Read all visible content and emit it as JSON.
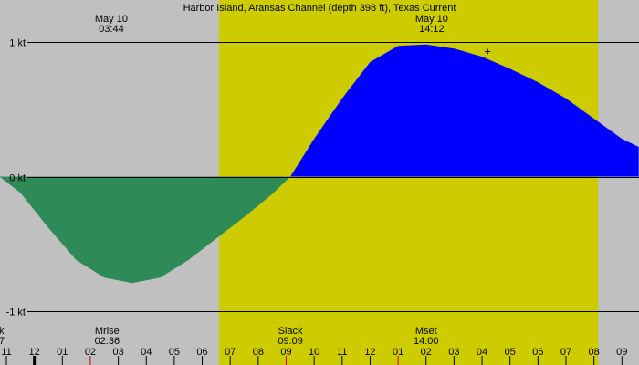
{
  "chart_data": {
    "type": "area",
    "title": "Harbor Island, Aransas Channel (depth 398 ft), Texas Current",
    "top_markers": [
      {
        "date": "May 10",
        "time": "03:44"
      },
      {
        "date": "May 10",
        "time": "14:12"
      }
    ],
    "y_ticks": [
      {
        "value": 1,
        "label": "1 kt"
      },
      {
        "value": 0,
        "label": "0 kt"
      },
      {
        "value": -1,
        "label": "-1 kt"
      }
    ],
    "ylim": [
      -1.1,
      1.08
    ],
    "xlim": [
      -0.25,
      22.6
    ],
    "x_tick_labels": [
      "11",
      "12",
      "01",
      "02",
      "03",
      "04",
      "05",
      "06",
      "07",
      "08",
      "09",
      "10",
      "11",
      "12",
      "01",
      "02",
      "03",
      "04",
      "05",
      "06",
      "07",
      "08",
      "09"
    ],
    "x_tick_start": 0,
    "daylight": {
      "start": 7.6,
      "end": 21.15
    },
    "events": [
      {
        "name": "k",
        "time": "7",
        "hour": -0.25
      },
      {
        "name": "Mrise",
        "time": "02:36",
        "hour": 3.6
      },
      {
        "name": "Slack",
        "time": "09:09",
        "hour": 10.15
      },
      {
        "name": "Mset",
        "time": "14:00",
        "hour": 15.0
      }
    ],
    "series": [
      {
        "x": [
          -0.25,
          0.5,
          1.5,
          2.5,
          3.5,
          4.5,
          5.5,
          6.5,
          7.5,
          8.5,
          9.5,
          10.15,
          11,
          12,
          13,
          14,
          15,
          16,
          17,
          18,
          19,
          20,
          21,
          22,
          22.6
        ],
        "values": [
          0.0,
          -0.12,
          -0.38,
          -0.62,
          -0.75,
          -0.79,
          -0.75,
          -0.62,
          -0.46,
          -0.3,
          -0.13,
          0.0,
          0.28,
          0.58,
          0.85,
          0.97,
          0.98,
          0.95,
          0.89,
          0.8,
          0.7,
          0.58,
          0.43,
          0.28,
          0.22
        ]
      }
    ],
    "marker": {
      "hour": 17.2,
      "value": 0.9
    },
    "colors": {
      "background": "#c0c0c0",
      "daylight": "#cccc00",
      "ebb": "#2e8b57",
      "flood": "#0000ff",
      "moon_tick": "#cc0000"
    }
  }
}
